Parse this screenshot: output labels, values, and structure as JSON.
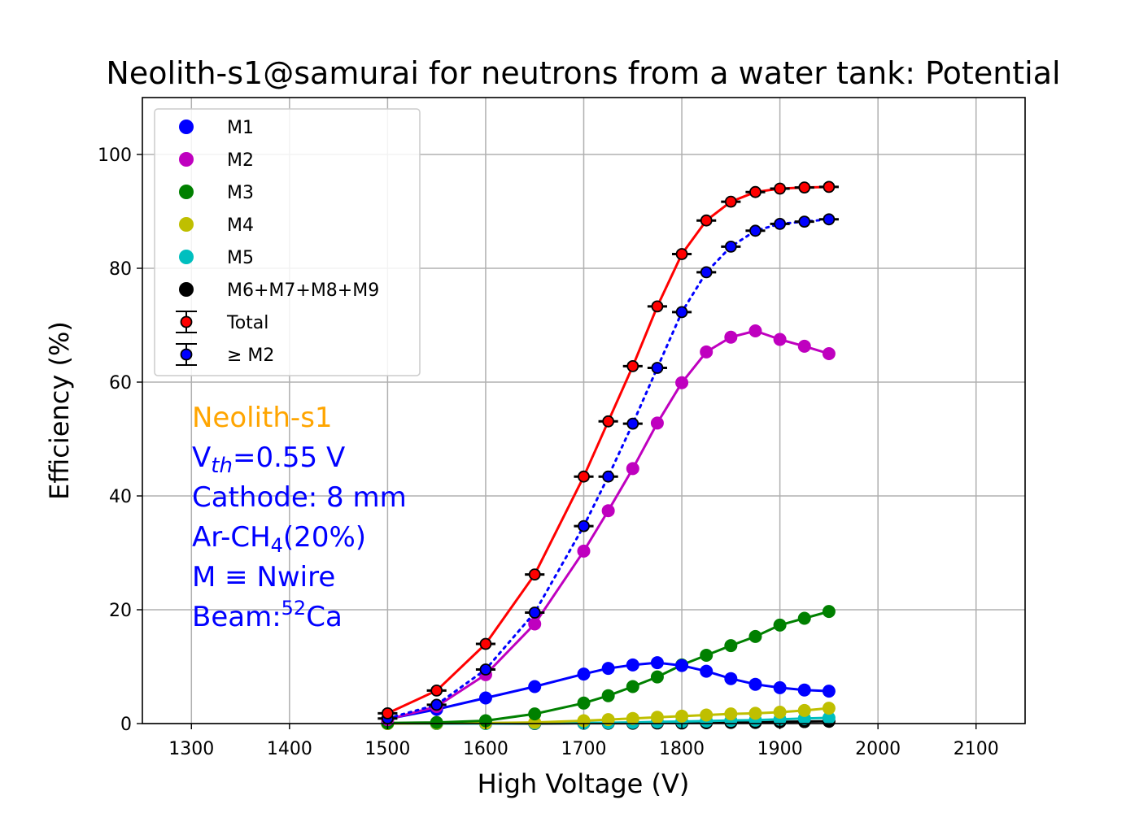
{
  "chart_data": {
    "type": "line",
    "title": "Neolith-s1@samurai for neutrons from a water tank: Potential",
    "xlabel": "High Voltage (V)",
    "ylabel": "Efficiency (%)",
    "xlim": [
      1250,
      2150
    ],
    "ylim": [
      0,
      110
    ],
    "xticks": [
      1300,
      1400,
      1500,
      1600,
      1700,
      1800,
      1900,
      2000,
      2100
    ],
    "yticks": [
      0,
      20,
      40,
      60,
      80,
      100
    ],
    "grid": true,
    "legend_position": "top-left",
    "x": [
      1500,
      1550,
      1600,
      1650,
      1700,
      1725,
      1750,
      1775,
      1800,
      1825,
      1850,
      1875,
      1900,
      1925,
      1950
    ],
    "series": [
      {
        "name": "M1",
        "color": "#0000ff",
        "style": "line-markers",
        "values": [
          0.8,
          2.5,
          4.5,
          6.5,
          8.7,
          9.7,
          10.3,
          10.7,
          10.2,
          9.2,
          7.9,
          6.9,
          6.3,
          5.9,
          5.7
        ]
      },
      {
        "name": "M2",
        "color": "#bf00bf",
        "style": "line-markers",
        "values": [
          0.7,
          3.0,
          8.6,
          17.5,
          30.3,
          37.4,
          44.8,
          52.8,
          59.9,
          65.3,
          67.9,
          69.0,
          67.5,
          66.3,
          65.0
        ]
      },
      {
        "name": "M3",
        "color": "#008000",
        "style": "line-markers",
        "values": [
          0.1,
          0.2,
          0.5,
          1.7,
          3.6,
          4.9,
          6.5,
          8.2,
          10.3,
          12.0,
          13.7,
          15.3,
          17.3,
          18.5,
          19.7
        ]
      },
      {
        "name": "M4",
        "color": "#bfbf00",
        "style": "line-markers",
        "values": [
          0.0,
          0.05,
          0.1,
          0.2,
          0.5,
          0.7,
          0.9,
          1.1,
          1.3,
          1.5,
          1.7,
          1.8,
          2.0,
          2.3,
          2.7
        ]
      },
      {
        "name": "M5",
        "color": "#00bfbf",
        "style": "line-markers",
        "values": [
          0.0,
          0.0,
          0.0,
          0.05,
          0.1,
          0.15,
          0.2,
          0.3,
          0.35,
          0.45,
          0.55,
          0.6,
          0.75,
          0.9,
          1.0
        ]
      },
      {
        "name": "M6+M7+M8+M9",
        "color": "#000000",
        "style": "line-markers",
        "values": [
          0.0,
          0.0,
          0.0,
          0.0,
          0.05,
          0.05,
          0.05,
          0.1,
          0.1,
          0.15,
          0.2,
          0.2,
          0.3,
          0.35,
          0.4
        ]
      },
      {
        "name": "Total",
        "color": "#ff0000",
        "style": "solid-errorbar",
        "values": [
          1.8,
          5.8,
          14.0,
          26.2,
          43.4,
          53.1,
          62.8,
          73.3,
          82.5,
          88.4,
          91.7,
          93.4,
          94.0,
          94.2,
          94.3
        ]
      },
      {
        "name": " ≥ M2",
        "color": "#0000ff",
        "style": "dotted-errorbar",
        "values": [
          0.9,
          3.3,
          9.5,
          19.5,
          34.7,
          43.4,
          52.7,
          62.5,
          72.3,
          79.3,
          83.8,
          86.6,
          87.8,
          88.2,
          88.6
        ]
      }
    ],
    "annotations": {
      "detector": "Neolith-s1",
      "vth_base": "V",
      "vth_sub": "th",
      "vth_rest": "=0.55 V",
      "cathode": "Cathode: 8 mm",
      "gas_base": "Ar-CH",
      "gas_sub": "4",
      "gas_rest": "(20%)",
      "mdef": "M ≡ Nwire",
      "beam_base": "Beam:",
      "beam_sup": "52",
      "beam_rest": "Ca",
      "detector_color": "#ffa500",
      "text_color": "#0000ff"
    }
  }
}
